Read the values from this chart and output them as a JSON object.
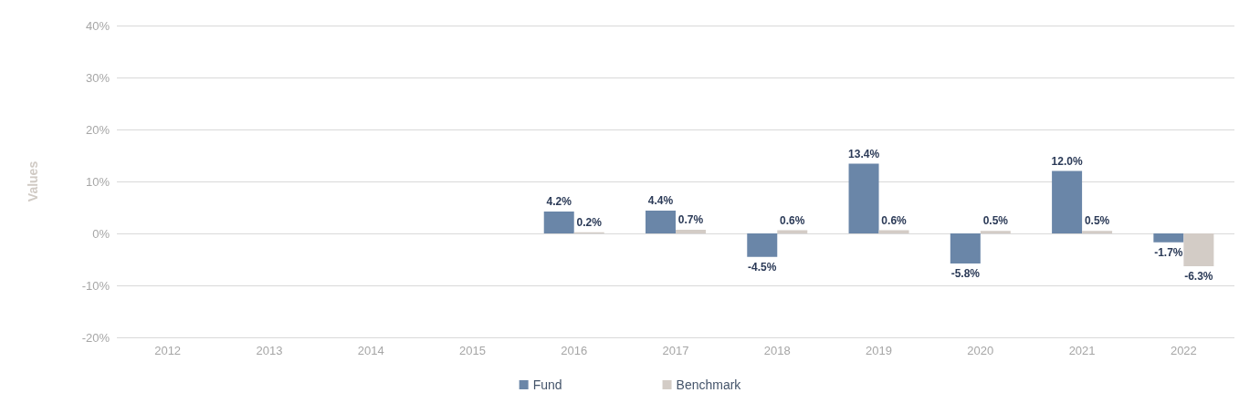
{
  "chart_data": {
    "type": "bar",
    "ylabel": "Values",
    "categories": [
      "2012",
      "2013",
      "2014",
      "2015",
      "2016",
      "2017",
      "2018",
      "2019",
      "2020",
      "2021",
      "2022"
    ],
    "series": [
      {
        "name": "Fund",
        "color": "#6a86a8",
        "values": [
          null,
          null,
          null,
          null,
          4.2,
          4.4,
          -4.5,
          13.4,
          -5.8,
          12.0,
          -1.7
        ],
        "value_labels": [
          null,
          null,
          null,
          null,
          "4.2%",
          "4.4%",
          "-4.5%",
          "13.4%",
          "-5.8%",
          "12.0%",
          "-1.7%"
        ]
      },
      {
        "name": "Benchmark",
        "color": "#d3ccc6",
        "values": [
          null,
          null,
          null,
          null,
          0.2,
          0.7,
          0.6,
          0.6,
          0.5,
          0.5,
          -6.3
        ],
        "value_labels": [
          null,
          null,
          null,
          null,
          "0.2%",
          "0.7%",
          "0.6%",
          "0.6%",
          "0.5%",
          "0.5%",
          "-6.3%"
        ]
      }
    ],
    "ylim": [
      -20,
      40
    ],
    "yticks": [
      {
        "value": -20,
        "label": "-20%"
      },
      {
        "value": -10,
        "label": "-10%"
      },
      {
        "value": 0,
        "label": "0%"
      },
      {
        "value": 10,
        "label": "10%"
      },
      {
        "value": 20,
        "label": "20%"
      },
      {
        "value": 30,
        "label": "30%"
      },
      {
        "value": 40,
        "label": "40%"
      }
    ],
    "grid": "y",
    "legend": "bottom"
  }
}
